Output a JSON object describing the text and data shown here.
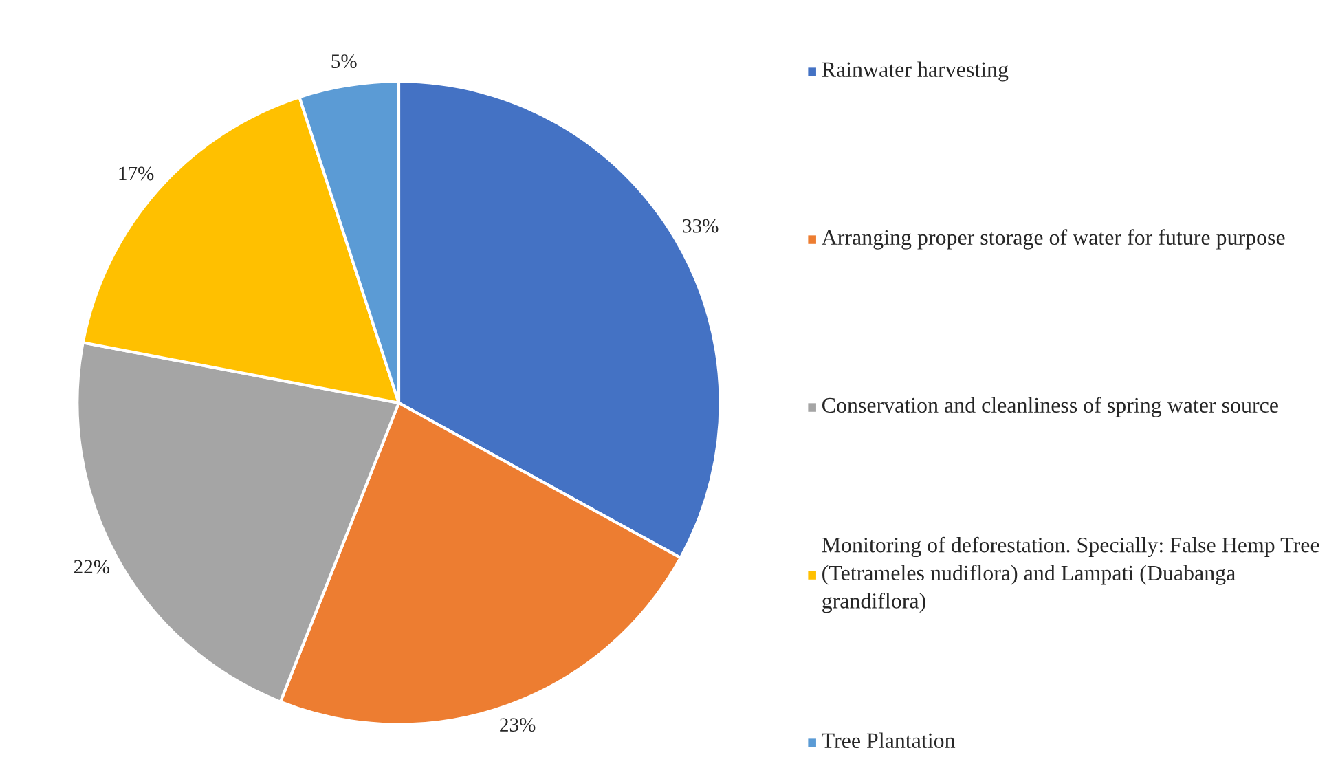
{
  "chart_data": {
    "type": "pie",
    "categories": [
      "Rainwater harvesting",
      "Arranging proper storage of water for future purpose",
      "Conservation and cleanliness of spring water source",
      "Monitoring of deforestation. Specially: False Hemp Tree (Tetrameles nudiflora) and Lampati (Duabanga grandiflora)",
      "Tree Plantation"
    ],
    "values": [
      33,
      23,
      22,
      17,
      5
    ],
    "colors": [
      "#4472c4",
      "#ed7d31",
      "#a5a5a5",
      "#ffc000",
      "#5b9bd5"
    ],
    "value_labels": [
      "33%",
      "23%",
      "22%",
      "17%",
      "5%"
    ],
    "legend": "right"
  }
}
